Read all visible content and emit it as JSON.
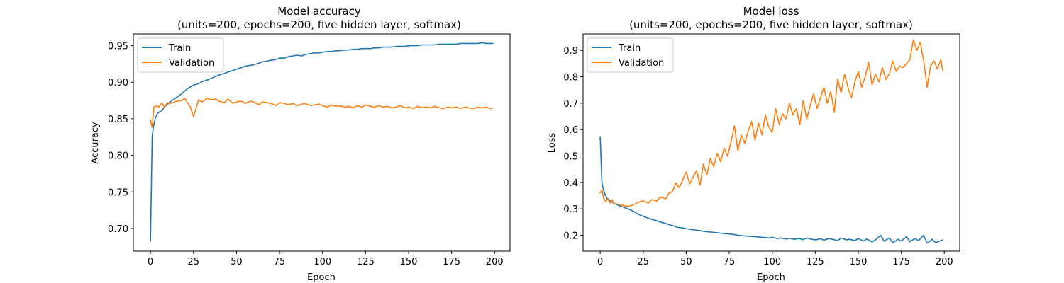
{
  "colors": {
    "train": "#1f77b4",
    "validation": "#ff7f0e"
  },
  "chart_data": [
    {
      "type": "line",
      "title_line1": "Model accuracy",
      "title_line2": "(units=200, epochs=200, five hidden layer, softmax)",
      "xlabel": "Epoch",
      "ylabel": "Accuracy",
      "xlim": [
        -9.95,
        208.95
      ],
      "ylim": [
        0.669,
        0.966
      ],
      "xticks": [
        0,
        25,
        50,
        75,
        100,
        125,
        150,
        175,
        200
      ],
      "yticks": [
        0.7,
        0.75,
        0.8,
        0.85,
        0.9,
        0.95
      ],
      "ytick_labels": [
        "0.70",
        "0.75",
        "0.80",
        "0.85",
        "0.90",
        "0.95"
      ],
      "legend": {
        "position": "upper-left",
        "entries": [
          "Train",
          "Validation"
        ]
      },
      "series": [
        {
          "name": "Train",
          "x": [
            0,
            1,
            2,
            3,
            4,
            5,
            6,
            7,
            8,
            10,
            12,
            15,
            18,
            20,
            22,
            25,
            28,
            30,
            33,
            35,
            38,
            40,
            43,
            45,
            48,
            50,
            53,
            55,
            58,
            60,
            63,
            65,
            68,
            70,
            73,
            75,
            78,
            80,
            83,
            85,
            88,
            90,
            93,
            95,
            98,
            100,
            103,
            105,
            108,
            110,
            113,
            115,
            118,
            120,
            123,
            125,
            128,
            130,
            133,
            135,
            138,
            140,
            143,
            145,
            148,
            150,
            153,
            155,
            158,
            160,
            163,
            165,
            168,
            170,
            173,
            175,
            178,
            180,
            183,
            185,
            188,
            190,
            193,
            195,
            198,
            199
          ],
          "y": [
            0.683,
            0.827,
            0.843,
            0.852,
            0.857,
            0.859,
            0.86,
            0.862,
            0.866,
            0.87,
            0.874,
            0.879,
            0.884,
            0.888,
            0.892,
            0.896,
            0.898,
            0.901,
            0.903,
            0.905,
            0.908,
            0.91,
            0.912,
            0.914,
            0.916,
            0.918,
            0.92,
            0.922,
            0.923,
            0.924,
            0.926,
            0.928,
            0.929,
            0.93,
            0.931,
            0.933,
            0.933,
            0.935,
            0.936,
            0.937,
            0.936,
            0.938,
            0.939,
            0.94,
            0.94,
            0.941,
            0.942,
            0.942,
            0.943,
            0.943,
            0.944,
            0.944,
            0.945,
            0.945,
            0.946,
            0.946,
            0.946,
            0.947,
            0.947,
            0.948,
            0.948,
            0.948,
            0.949,
            0.949,
            0.949,
            0.95,
            0.95,
            0.95,
            0.951,
            0.951,
            0.951,
            0.951,
            0.952,
            0.952,
            0.952,
            0.952,
            0.952,
            0.953,
            0.953,
            0.953,
            0.953,
            0.953,
            0.954,
            0.953,
            0.953,
            0.953
          ]
        },
        {
          "name": "Validation",
          "x": [
            0,
            1,
            2,
            3,
            4,
            5,
            6,
            7,
            8,
            10,
            12,
            15,
            18,
            20,
            22,
            23,
            25,
            28,
            30,
            33,
            35,
            38,
            40,
            43,
            45,
            48,
            50,
            53,
            55,
            58,
            60,
            63,
            65,
            68,
            70,
            73,
            75,
            78,
            80,
            83,
            85,
            88,
            90,
            93,
            95,
            98,
            100,
            103,
            105,
            108,
            110,
            113,
            115,
            118,
            120,
            123,
            125,
            128,
            130,
            133,
            135,
            138,
            140,
            143,
            145,
            148,
            150,
            153,
            155,
            158,
            160,
            163,
            165,
            168,
            170,
            173,
            175,
            178,
            180,
            183,
            185,
            188,
            190,
            193,
            195,
            198,
            199
          ],
          "y": [
            0.848,
            0.838,
            0.866,
            0.867,
            0.868,
            0.866,
            0.87,
            0.871,
            0.866,
            0.872,
            0.871,
            0.874,
            0.875,
            0.878,
            0.87,
            0.867,
            0.853,
            0.876,
            0.873,
            0.878,
            0.876,
            0.877,
            0.874,
            0.872,
            0.877,
            0.871,
            0.873,
            0.874,
            0.871,
            0.874,
            0.873,
            0.869,
            0.873,
            0.872,
            0.871,
            0.868,
            0.872,
            0.871,
            0.869,
            0.871,
            0.868,
            0.87,
            0.871,
            0.868,
            0.869,
            0.87,
            0.868,
            0.866,
            0.869,
            0.867,
            0.868,
            0.866,
            0.867,
            0.865,
            0.868,
            0.866,
            0.869,
            0.867,
            0.866,
            0.868,
            0.866,
            0.867,
            0.865,
            0.866,
            0.868,
            0.865,
            0.866,
            0.864,
            0.867,
            0.865,
            0.866,
            0.865,
            0.867,
            0.865,
            0.864,
            0.866,
            0.865,
            0.866,
            0.864,
            0.866,
            0.865,
            0.864,
            0.866,
            0.865,
            0.866,
            0.864,
            0.865
          ]
        }
      ]
    },
    {
      "type": "line",
      "title_line1": "Model loss",
      "title_line2": "(units=200, epochs=200, five hidden layer, softmax)",
      "xlabel": "Epoch",
      "ylabel": "Loss",
      "xlim": [
        -9.95,
        208.95
      ],
      "ylim": [
        0.14,
        0.962
      ],
      "xticks": [
        0,
        25,
        50,
        75,
        100,
        125,
        150,
        175,
        200
      ],
      "yticks": [
        0.2,
        0.3,
        0.4,
        0.5,
        0.6,
        0.7,
        0.8,
        0.9
      ],
      "ytick_labels": [
        "0.2",
        "0.3",
        "0.4",
        "0.5",
        "0.6",
        "0.7",
        "0.8",
        "0.9"
      ],
      "legend": {
        "position": "upper-left",
        "entries": [
          "Train",
          "Validation"
        ]
      },
      "series": [
        {
          "name": "Train",
          "x": [
            0,
            1,
            2,
            3,
            4,
            5,
            6,
            7,
            8,
            10,
            12,
            15,
            18,
            20,
            22,
            25,
            28,
            30,
            33,
            35,
            38,
            40,
            43,
            45,
            48,
            50,
            53,
            55,
            58,
            60,
            63,
            65,
            68,
            70,
            73,
            75,
            78,
            80,
            83,
            85,
            88,
            90,
            93,
            95,
            98,
            100,
            103,
            105,
            108,
            110,
            113,
            115,
            118,
            120,
            123,
            125,
            128,
            130,
            133,
            135,
            138,
            140,
            143,
            145,
            148,
            150,
            153,
            155,
            158,
            160,
            163,
            165,
            168,
            170,
            173,
            175,
            178,
            180,
            183,
            185,
            188,
            190,
            193,
            195,
            198,
            199
          ],
          "y": [
            0.573,
            0.4,
            0.37,
            0.352,
            0.34,
            0.335,
            0.33,
            0.325,
            0.322,
            0.315,
            0.31,
            0.303,
            0.295,
            0.288,
            0.28,
            0.272,
            0.265,
            0.26,
            0.255,
            0.25,
            0.245,
            0.24,
            0.235,
            0.23,
            0.228,
            0.225,
            0.222,
            0.22,
            0.218,
            0.215,
            0.213,
            0.212,
            0.21,
            0.208,
            0.206,
            0.205,
            0.203,
            0.2,
            0.198,
            0.197,
            0.196,
            0.195,
            0.193,
            0.192,
            0.19,
            0.192,
            0.188,
            0.19,
            0.186,
            0.189,
            0.185,
            0.188,
            0.184,
            0.19,
            0.185,
            0.183,
            0.187,
            0.182,
            0.188,
            0.185,
            0.18,
            0.19,
            0.183,
            0.185,
            0.18,
            0.188,
            0.178,
            0.186,
            0.175,
            0.183,
            0.2,
            0.178,
            0.19,
            0.172,
            0.185,
            0.178,
            0.195,
            0.176,
            0.188,
            0.18,
            0.2,
            0.17,
            0.185,
            0.172,
            0.18,
            0.182
          ]
        },
        {
          "name": "Validation",
          "x": [
            0,
            1,
            2,
            3,
            4,
            5,
            6,
            7,
            8,
            10,
            12,
            15,
            18,
            20,
            22,
            25,
            28,
            30,
            33,
            35,
            38,
            40,
            42,
            44,
            46,
            48,
            50,
            52,
            54,
            56,
            58,
            60,
            62,
            64,
            66,
            68,
            70,
            72,
            74,
            76,
            78,
            80,
            82,
            84,
            86,
            88,
            90,
            92,
            94,
            96,
            98,
            100,
            102,
            104,
            106,
            108,
            110,
            112,
            114,
            116,
            118,
            120,
            122,
            124,
            126,
            128,
            130,
            132,
            134,
            136,
            138,
            140,
            142,
            144,
            146,
            148,
            150,
            152,
            154,
            156,
            158,
            160,
            162,
            164,
            166,
            168,
            170,
            172,
            174,
            176,
            178,
            180,
            182,
            184,
            186,
            188,
            190,
            192,
            194,
            196,
            198,
            199
          ],
          "y": [
            0.36,
            0.372,
            0.34,
            0.328,
            0.338,
            0.33,
            0.322,
            0.335,
            0.32,
            0.318,
            0.315,
            0.31,
            0.312,
            0.318,
            0.325,
            0.33,
            0.322,
            0.335,
            0.33,
            0.345,
            0.338,
            0.36,
            0.365,
            0.398,
            0.38,
            0.41,
            0.44,
            0.395,
            0.42,
            0.445,
            0.39,
            0.47,
            0.428,
            0.49,
            0.46,
            0.51,
            0.478,
            0.53,
            0.5,
            0.552,
            0.615,
            0.52,
            0.58,
            0.548,
            0.595,
            0.63,
            0.56,
            0.625,
            0.58,
            0.655,
            0.61,
            0.59,
            0.68,
            0.62,
            0.66,
            0.64,
            0.7,
            0.655,
            0.68,
            0.62,
            0.71,
            0.64,
            0.69,
            0.735,
            0.68,
            0.72,
            0.76,
            0.7,
            0.745,
            0.665,
            0.79,
            0.74,
            0.81,
            0.76,
            0.72,
            0.78,
            0.82,
            0.76,
            0.8,
            0.855,
            0.77,
            0.81,
            0.78,
            0.835,
            0.79,
            0.81,
            0.86,
            0.82,
            0.84,
            0.835,
            0.85,
            0.865,
            0.94,
            0.9,
            0.93,
            0.86,
            0.76,
            0.84,
            0.86,
            0.83,
            0.865,
            0.825
          ]
        }
      ]
    }
  ]
}
